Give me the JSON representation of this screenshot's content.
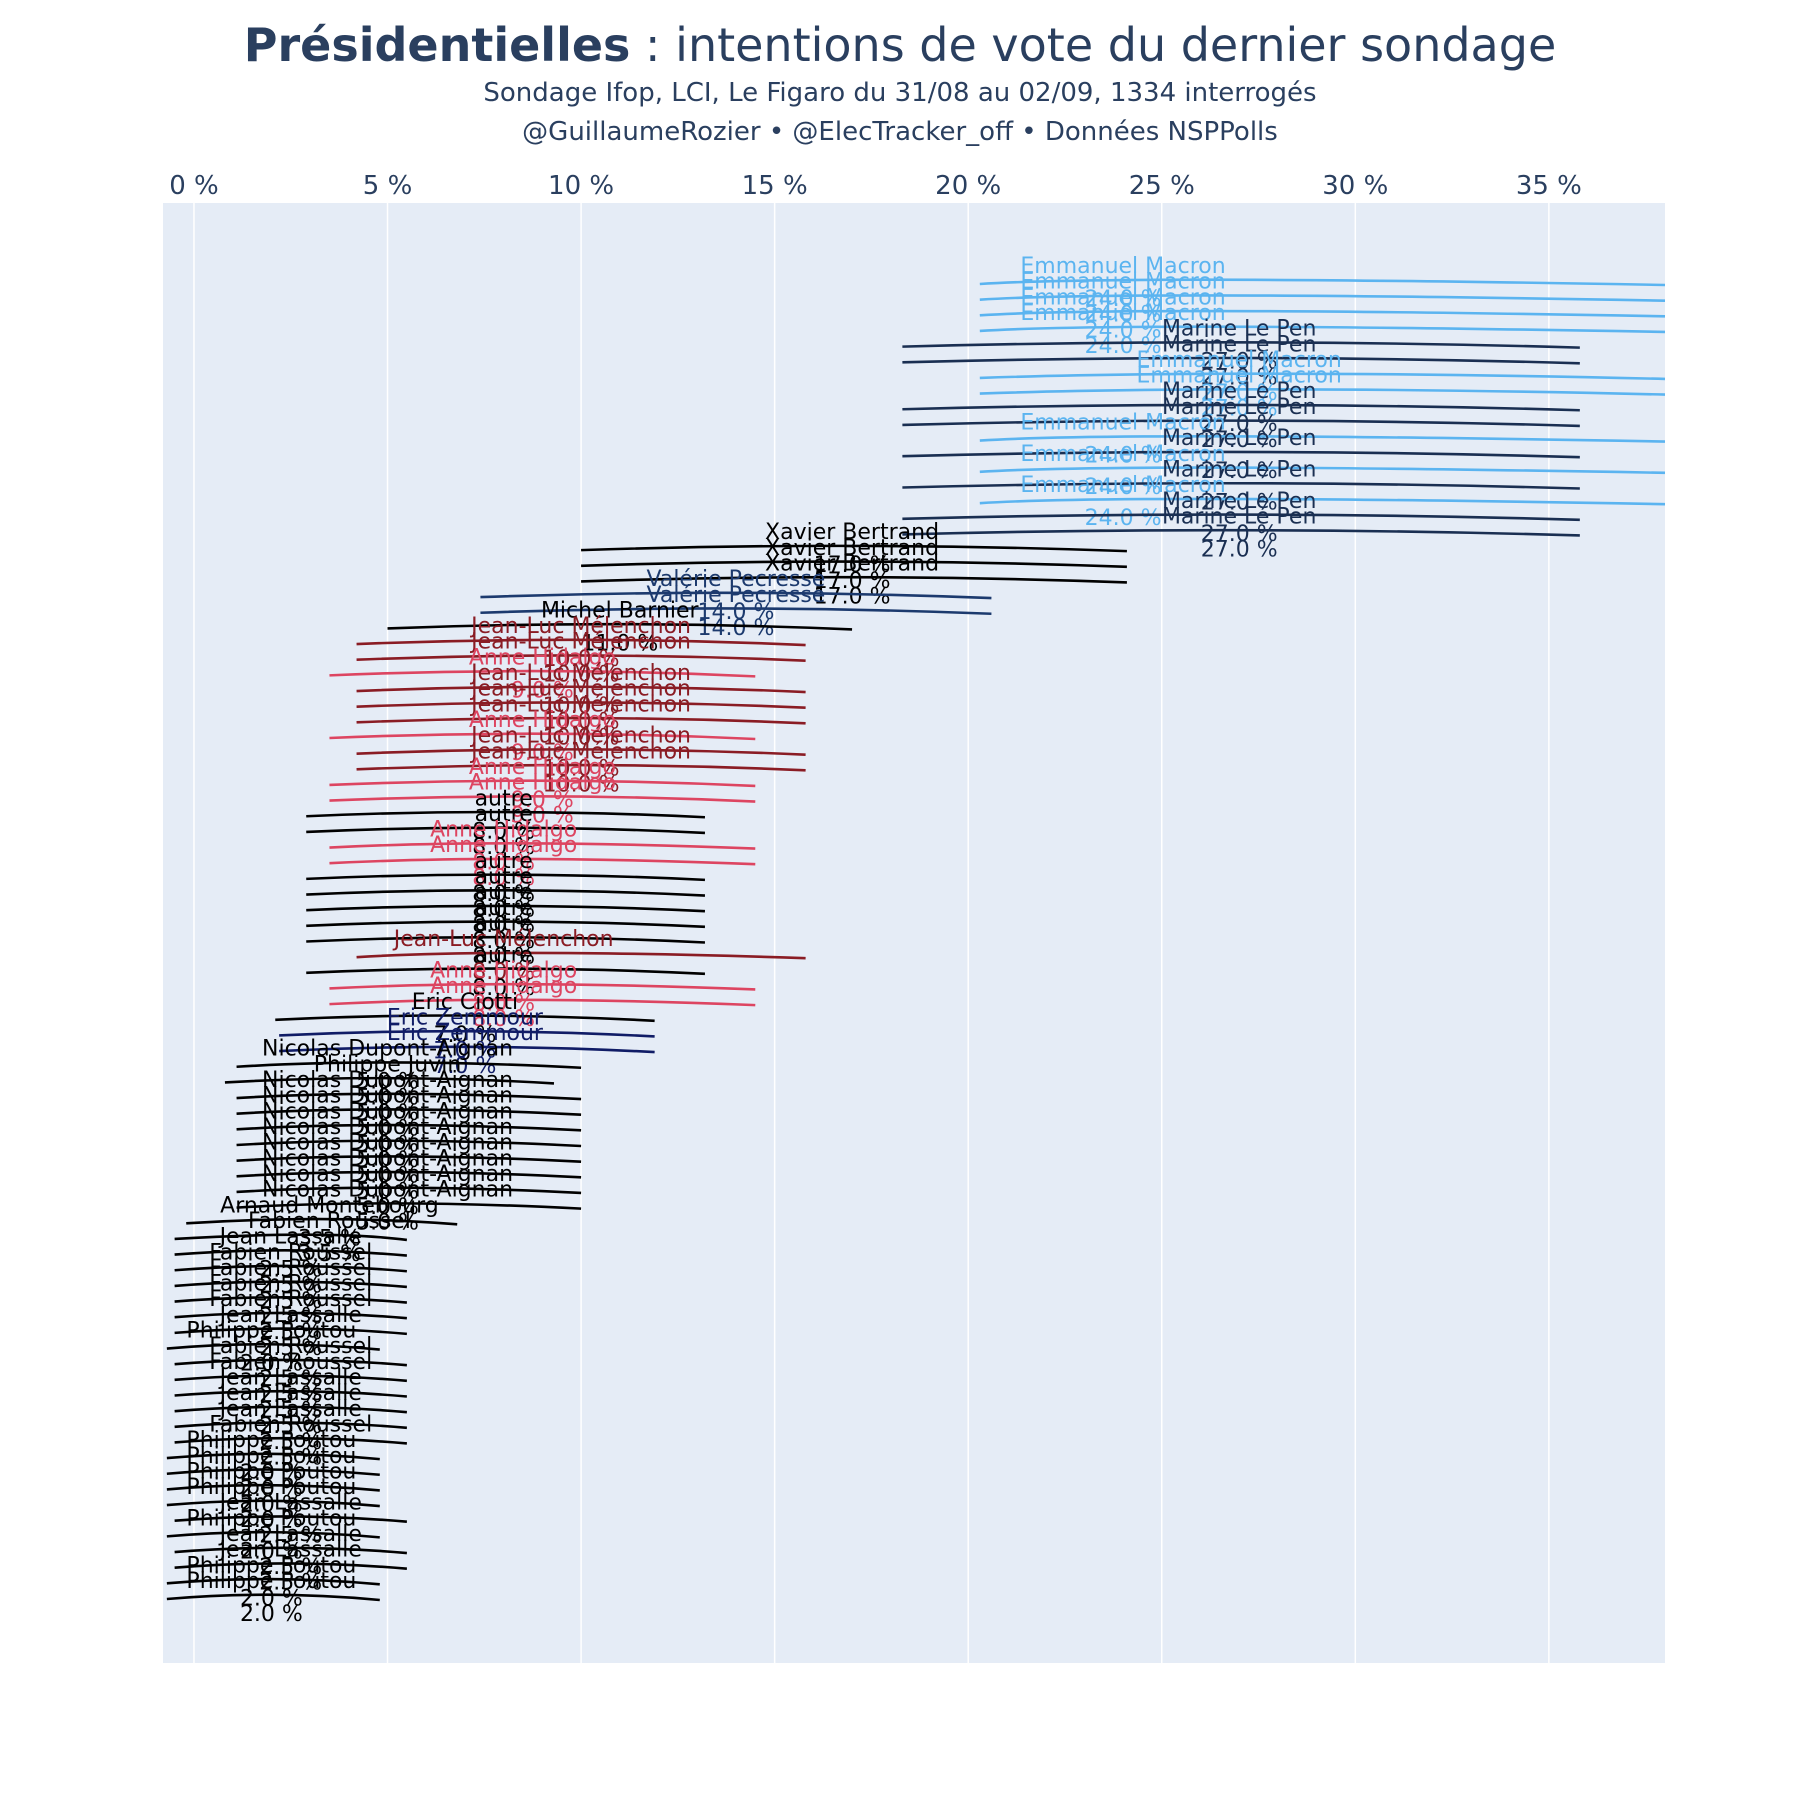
{
  "title_bold": "Présidentielles",
  "title_rest": " : intentions de vote du dernier sondage",
  "subtitle": "Sondage Ifop, LCI, Le Figaro du 31/08 au 02/09, 1334 interrogés",
  "credits": "@GuillaumeRozier • @ElecTracker_off • Données NSPPolls",
  "colors": {
    "plot_bg": "#e5ecf6",
    "grid": "#ffffff",
    "Emmanuel Macron": "#5bb4f0",
    "Marine Le Pen": "#1a2f52",
    "Xavier Bertrand": "#000000",
    "Valérie Pecresse": "#1c3a6e",
    "Michel Barnier": "#000000",
    "Jean-Luc Mélenchon": "#8a1c24",
    "Anne Hidalgo": "#dd4561",
    "autre": "#000000",
    "Eric Ciotti": "#000000",
    "Eric Zemmour": "#101c66",
    "Nicolas Dupont-Aignan": "#000000",
    "Philippe Juvin": "#000000",
    "Arnaud Montebourg": "#000000",
    "Fabien Roussel": "#000000",
    "Jean Lassalle": "#000000",
    "Philippe Poutou": "#000000"
  },
  "chart_data": {
    "type": "scatter",
    "orientation": "horizontal",
    "xaxis": {
      "range": [
        -0.8,
        38
      ],
      "ticks": [
        0,
        5,
        10,
        15,
        20,
        25,
        30,
        35
      ],
      "tick_labels": [
        "0 %",
        "5 %",
        "10 %",
        "15 %",
        "20 %",
        "25 %",
        "30 %",
        "35 %"
      ],
      "side": "top",
      "grid": true
    },
    "points": [
      {
        "candidate": "Emmanuel Macron",
        "value": "24.0 %",
        "low": 20.3,
        "high": 38
      },
      {
        "candidate": "Emmanuel Macron",
        "value": "24.0 %",
        "low": 20.3,
        "high": 38
      },
      {
        "candidate": "Emmanuel Macron",
        "value": "24.0 %",
        "low": 20.3,
        "high": 38
      },
      {
        "candidate": "Emmanuel Macron",
        "value": "24.0 %",
        "low": 20.3,
        "high": 38
      },
      {
        "candidate": "Marine Le Pen",
        "value": "27.0 %",
        "low": 18.3,
        "high": 35.8
      },
      {
        "candidate": "Marine Le Pen",
        "value": "27.0 %",
        "low": 18.3,
        "high": 35.8
      },
      {
        "candidate": "Emmanuel Macron",
        "value": "27.0 %",
        "low": 20.3,
        "high": 38
      },
      {
        "candidate": "Emmanuel Macron",
        "value": "27.0 %",
        "low": 20.3,
        "high": 38
      },
      {
        "candidate": "Marine Le Pen",
        "value": "27.0 %",
        "low": 18.3,
        "high": 35.8
      },
      {
        "candidate": "Marine Le Pen",
        "value": "27.0 %",
        "low": 18.3,
        "high": 35.8
      },
      {
        "candidate": "Emmanuel Macron",
        "value": "24.0 %",
        "low": 20.3,
        "high": 38
      },
      {
        "candidate": "Marine Le Pen",
        "value": "27.0 %",
        "low": 18.3,
        "high": 35.8
      },
      {
        "candidate": "Emmanuel Macron",
        "value": "24.0 %",
        "low": 20.3,
        "high": 38
      },
      {
        "candidate": "Marine Le Pen",
        "value": "27.0 %",
        "low": 18.3,
        "high": 35.8
      },
      {
        "candidate": "Emmanuel Macron",
        "value": "24.0 %",
        "low": 20.3,
        "high": 38
      },
      {
        "candidate": "Marine Le Pen",
        "value": "27.0 %",
        "low": 18.3,
        "high": 35.8
      },
      {
        "candidate": "Marine Le Pen",
        "value": "27.0 %",
        "low": 18.3,
        "high": 35.8
      },
      {
        "candidate": "Xavier Bertrand",
        "value": "17.0 %",
        "low": 10,
        "high": 24.1
      },
      {
        "candidate": "Xavier Bertrand",
        "value": "17.0 %",
        "low": 10,
        "high": 24.1
      },
      {
        "candidate": "Xavier Bertrand",
        "value": "17.0 %",
        "low": 10,
        "high": 24.1
      },
      {
        "candidate": "Valérie Pecresse",
        "value": "14.0 %",
        "low": 7.4,
        "high": 20.6
      },
      {
        "candidate": "Valérie Pecresse",
        "value": "14.0 %",
        "low": 7.4,
        "high": 20.6
      },
      {
        "candidate": "Michel Barnier",
        "value": "11.0 %",
        "low": 5,
        "high": 17
      },
      {
        "candidate": "Jean-Luc Mélenchon",
        "value": "10.0 %",
        "low": 4.2,
        "high": 15.8
      },
      {
        "candidate": "Jean-Luc Mélenchon",
        "value": "10.0 %",
        "low": 4.2,
        "high": 15.8
      },
      {
        "candidate": "Anne Hidalgo",
        "value": "9.0 %",
        "low": 3.5,
        "high": 14.5
      },
      {
        "candidate": "Jean-Luc Mélenchon",
        "value": "10.0 %",
        "low": 4.2,
        "high": 15.8
      },
      {
        "candidate": "Jean-Luc Mélenchon",
        "value": "10.0 %",
        "low": 4.2,
        "high": 15.8
      },
      {
        "candidate": "Jean-Luc Mélenchon",
        "value": "10.0 %",
        "low": 4.2,
        "high": 15.8
      },
      {
        "candidate": "Anne Hidalgo",
        "value": "9.0 %",
        "low": 3.5,
        "high": 14.5
      },
      {
        "candidate": "Jean-Luc Mélenchon",
        "value": "10.0 %",
        "low": 4.2,
        "high": 15.8
      },
      {
        "candidate": "Jean-Luc Mélenchon",
        "value": "10.0 %",
        "low": 4.2,
        "high": 15.8
      },
      {
        "candidate": "Anne Hidalgo",
        "value": "9.0 %",
        "low": 3.5,
        "high": 14.5
      },
      {
        "candidate": "Anne Hidalgo",
        "value": "9.0 %",
        "low": 3.5,
        "high": 14.5
      },
      {
        "candidate": "autre",
        "value": "8.0 %",
        "low": 2.9,
        "high": 13.2
      },
      {
        "candidate": "autre",
        "value": "8.0 %",
        "low": 2.9,
        "high": 13.2
      },
      {
        "candidate": "Anne Hidalgo",
        "value": "8.0 %",
        "low": 3.5,
        "high": 14.5
      },
      {
        "candidate": "Anne Hidalgo",
        "value": "8.0 %",
        "low": 3.5,
        "high": 14.5
      },
      {
        "candidate": "autre",
        "value": "8.0 %",
        "low": 2.9,
        "high": 13.2
      },
      {
        "candidate": "autre",
        "value": "8.0 %",
        "low": 2.9,
        "high": 13.2
      },
      {
        "candidate": "autre",
        "value": "8.0 %",
        "low": 2.9,
        "high": 13.2
      },
      {
        "candidate": "autre",
        "value": "8.0 %",
        "low": 2.9,
        "high": 13.2
      },
      {
        "candidate": "autre",
        "value": "8.0 %",
        "low": 2.9,
        "high": 13.2
      },
      {
        "candidate": "Jean-Luc Mélenchon",
        "value": "8.0 %",
        "low": 4.2,
        "high": 15.8
      },
      {
        "candidate": "autre",
        "value": "8.0 %",
        "low": 2.9,
        "high": 13.2
      },
      {
        "candidate": "Anne Hidalgo",
        "value": "8.0 %",
        "low": 3.5,
        "high": 14.5
      },
      {
        "candidate": "Anne Hidalgo",
        "value": "8.0 %",
        "low": 3.5,
        "high": 14.5
      },
      {
        "candidate": "Eric Ciotti",
        "value": "7.0 %",
        "low": 2.1,
        "high": 11.9
      },
      {
        "candidate": "Eric Zemmour",
        "value": "7.0 %",
        "low": 2.2,
        "high": 11.9
      },
      {
        "candidate": "Eric Zemmour",
        "value": "7.0 %",
        "low": 2.2,
        "high": 11.9
      },
      {
        "candidate": "Nicolas Dupont-Aignan",
        "value": "5.0 %",
        "low": 1.1,
        "high": 10
      },
      {
        "candidate": "Philippe Juvin",
        "value": "5.0 %",
        "low": 0.8,
        "high": 9.3
      },
      {
        "candidate": "Nicolas Dupont-Aignan",
        "value": "5.0 %",
        "low": 1.1,
        "high": 10
      },
      {
        "candidate": "Nicolas Dupont-Aignan",
        "value": "5.0 %",
        "low": 1.1,
        "high": 10
      },
      {
        "candidate": "Nicolas Dupont-Aignan",
        "value": "5.0 %",
        "low": 1.1,
        "high": 10
      },
      {
        "candidate": "Nicolas Dupont-Aignan",
        "value": "5.0 %",
        "low": 1.1,
        "high": 10
      },
      {
        "candidate": "Nicolas Dupont-Aignan",
        "value": "5.0 %",
        "low": 1.1,
        "high": 10
      },
      {
        "candidate": "Nicolas Dupont-Aignan",
        "value": "5.0 %",
        "low": 1.1,
        "high": 10
      },
      {
        "candidate": "Nicolas Dupont-Aignan",
        "value": "5.0 %",
        "low": 1.1,
        "high": 10
      },
      {
        "candidate": "Nicolas Dupont-Aignan",
        "value": "5.0 %",
        "low": 1.1,
        "high": 10
      },
      {
        "candidate": "Arnaud Montebourg",
        "value": "3.5 %",
        "low": -0.2,
        "high": 6.8
      },
      {
        "candidate": "Fabien Roussel",
        "value": "3.5 %",
        "low": -0.5,
        "high": 5.5
      },
      {
        "candidate": "Jean Lassalle",
        "value": "2.5 %",
        "low": -0.5,
        "high": 5.5
      },
      {
        "candidate": "Fabien Roussel",
        "value": "2.5 %",
        "low": -0.5,
        "high": 5.5
      },
      {
        "candidate": "Fabien Roussel",
        "value": "2.5 %",
        "low": -0.5,
        "high": 5.5
      },
      {
        "candidate": "Fabien Roussel",
        "value": "2.5 %",
        "low": -0.5,
        "high": 5.5
      },
      {
        "candidate": "Fabien Roussel",
        "value": "2.5 %",
        "low": -0.5,
        "high": 5.5
      },
      {
        "candidate": "Jean Lassalle",
        "value": "2.5 %",
        "low": -0.5,
        "high": 5.5
      },
      {
        "candidate": "Philippe Poutou",
        "value": "2.0 %",
        "low": -0.7,
        "high": 4.8
      },
      {
        "candidate": "Fabien Roussel",
        "value": "2.5 %",
        "low": -0.5,
        "high": 5.5
      },
      {
        "candidate": "Fabien Roussel",
        "value": "2.5 %",
        "low": -0.5,
        "high": 5.5
      },
      {
        "candidate": "Jean Lassalle",
        "value": "2.5 %",
        "low": -0.5,
        "high": 5.5
      },
      {
        "candidate": "Jean Lassalle",
        "value": "2.5 %",
        "low": -0.5,
        "high": 5.5
      },
      {
        "candidate": "Jean Lassalle",
        "value": "2.5 %",
        "low": -0.5,
        "high": 5.5
      },
      {
        "candidate": "Fabien Roussel",
        "value": "2.5 %",
        "low": -0.5,
        "high": 5.5
      },
      {
        "candidate": "Philippe Poutou",
        "value": "2.0 %",
        "low": -0.7,
        "high": 4.8
      },
      {
        "candidate": "Philippe Poutou",
        "value": "2.0 %",
        "low": -0.7,
        "high": 4.8
      },
      {
        "candidate": "Philippe Poutou",
        "value": "2.0 %",
        "low": -0.7,
        "high": 4.8
      },
      {
        "candidate": "Philippe Poutou",
        "value": "2.0 %",
        "low": -0.7,
        "high": 4.8
      },
      {
        "candidate": "Jean Lassalle",
        "value": "2.5 %",
        "low": -0.5,
        "high": 5.5
      },
      {
        "candidate": "Philippe Poutou",
        "value": "2.0 %",
        "low": -0.7,
        "high": 4.8
      },
      {
        "candidate": "Jean Lassalle",
        "value": "2.5 %",
        "low": -0.5,
        "high": 5.5
      },
      {
        "candidate": "Jean Lassalle",
        "value": "2.5 %",
        "low": -0.5,
        "high": 5.5
      },
      {
        "candidate": "Philippe Poutou",
        "value": "2.0 %",
        "low": -0.7,
        "high": 4.8
      },
      {
        "candidate": "Philippe Poutou",
        "value": "2.0 %",
        "low": -0.7,
        "high": 4.8
      }
    ]
  }
}
